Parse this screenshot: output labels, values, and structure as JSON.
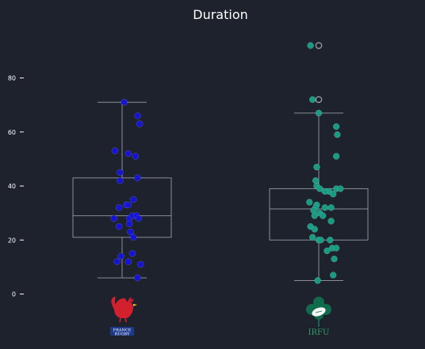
{
  "chart_data": {
    "type": "box",
    "title": "Duration",
    "ylim": [
      -10,
      95
    ],
    "yticks": [
      0,
      20,
      40,
      60,
      80
    ],
    "grid": false,
    "categories": [
      "France Rugby",
      "IRFU"
    ],
    "series": [
      {
        "box": {
          "min": 6,
          "q1": 21,
          "median": 29,
          "q3": 43,
          "max": 71
        },
        "outliers": [],
        "color": "#1414d2",
        "points": [
          [
            0.02,
            71
          ],
          [
            0.15,
            66
          ],
          [
            0.17,
            63
          ],
          [
            -0.07,
            53
          ],
          [
            0.06,
            52
          ],
          [
            0.13,
            51
          ],
          [
            -0.02,
            45
          ],
          [
            -0.02,
            42
          ],
          [
            0.15,
            43
          ],
          [
            0.11,
            35
          ],
          [
            0.04,
            33
          ],
          [
            0.06,
            33
          ],
          [
            -0.03,
            32
          ],
          [
            -0.08,
            28
          ],
          [
            0.07,
            28
          ],
          [
            0.1,
            29
          ],
          [
            0.14,
            29
          ],
          [
            0.16,
            28
          ],
          [
            0.07,
            26
          ],
          [
            -0.03,
            25
          ],
          [
            0.08,
            23
          ],
          [
            0.11,
            21
          ],
          [
            -0.01,
            14
          ],
          [
            0.1,
            15
          ],
          [
            -0.05,
            12
          ],
          [
            0.06,
            12
          ],
          [
            0.18,
            11
          ],
          [
            0.15,
            6
          ]
        ],
        "logo": {
          "line1": "FRANCE",
          "line2": "RUGBY"
        }
      },
      {
        "box": {
          "min": 5,
          "q1": 20,
          "median": 31.5,
          "q3": 39,
          "max": 67
        },
        "outliers": [
          92,
          72
        ],
        "color": "#1a9a82",
        "points": [
          [
            -0.08,
            92
          ],
          [
            -0.06,
            72
          ],
          [
            0.0,
            67
          ],
          [
            0.17,
            62
          ],
          [
            0.18,
            59
          ],
          [
            0.17,
            51
          ],
          [
            -0.02,
            47
          ],
          [
            -0.03,
            42
          ],
          [
            -0.02,
            40
          ],
          [
            0.01,
            39
          ],
          [
            0.17,
            39
          ],
          [
            0.21,
            39
          ],
          [
            0.1,
            38
          ],
          [
            0.14,
            37
          ],
          [
            0.06,
            38
          ],
          [
            -0.09,
            34
          ],
          [
            -0.02,
            33
          ],
          [
            -0.03,
            32
          ],
          [
            0.06,
            32
          ],
          [
            0.12,
            32
          ],
          [
            -0.05,
            31
          ],
          [
            0.01,
            30
          ],
          [
            0.04,
            29
          ],
          [
            -0.04,
            29
          ],
          [
            0.12,
            27
          ],
          [
            -0.08,
            25
          ],
          [
            -0.04,
            24
          ],
          [
            0.0,
            20
          ],
          [
            -0.06,
            21
          ],
          [
            0.02,
            20
          ],
          [
            0.11,
            20
          ],
          [
            0.13,
            17
          ],
          [
            0.17,
            17
          ],
          [
            0.08,
            16
          ],
          [
            0.15,
            13
          ],
          [
            0.14,
            7
          ],
          [
            -0.01,
            5
          ]
        ],
        "logo": {
          "line1": "IRFU"
        }
      }
    ]
  }
}
